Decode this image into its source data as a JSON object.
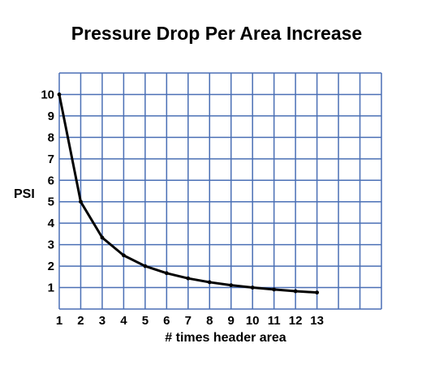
{
  "chart_data": {
    "type": "line",
    "title": "Pressure Drop Per Area Increase",
    "xlabel": "# times header area",
    "ylabel": "PSI",
    "x": [
      1,
      2,
      3,
      4,
      5,
      6,
      7,
      8,
      9,
      10,
      11,
      12,
      13
    ],
    "series": [
      {
        "values": [
          10,
          5,
          3.33,
          2.5,
          2,
          1.67,
          1.43,
          1.25,
          1.11,
          1.0,
          0.91,
          0.83,
          0.77
        ]
      }
    ],
    "xticks": [
      "1",
      "2",
      "3",
      "4",
      "5",
      "6",
      "7",
      "8",
      "9",
      "10",
      "11",
      "12",
      "13"
    ],
    "yticks": [
      "1",
      "2",
      "3",
      "4",
      "5",
      "6",
      "7",
      "8",
      "9",
      "10"
    ],
    "xlim": [
      1,
      16
    ],
    "ylim": [
      0,
      11
    ],
    "grid": true,
    "colors": {
      "grid": "#4a6fb5",
      "line": "#000000",
      "text": "#000000"
    }
  }
}
